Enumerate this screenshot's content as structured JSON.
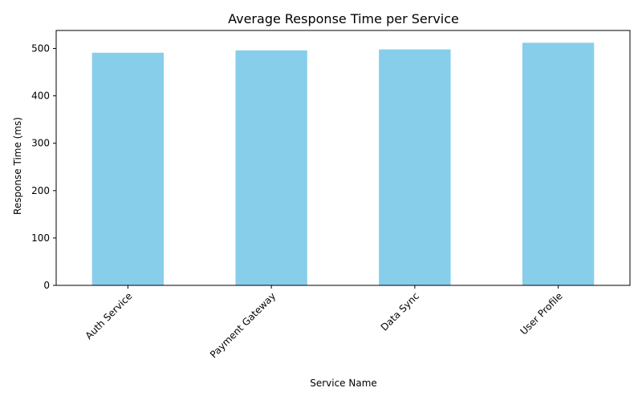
{
  "chart_data": {
    "type": "bar",
    "title": "Average Response Time per Service",
    "xlabel": "Service Name",
    "ylabel": "Response Time (ms)",
    "categories": [
      "Auth Service",
      "Payment Gateway",
      "Data Sync",
      "User Profile"
    ],
    "values": [
      491,
      496,
      498,
      512
    ],
    "ylim": [
      0,
      538
    ],
    "yticks": [
      0,
      100,
      200,
      300,
      400,
      500
    ],
    "grid": false,
    "bar_color": "#87CEEB",
    "x_tick_rotation_deg": 45
  }
}
